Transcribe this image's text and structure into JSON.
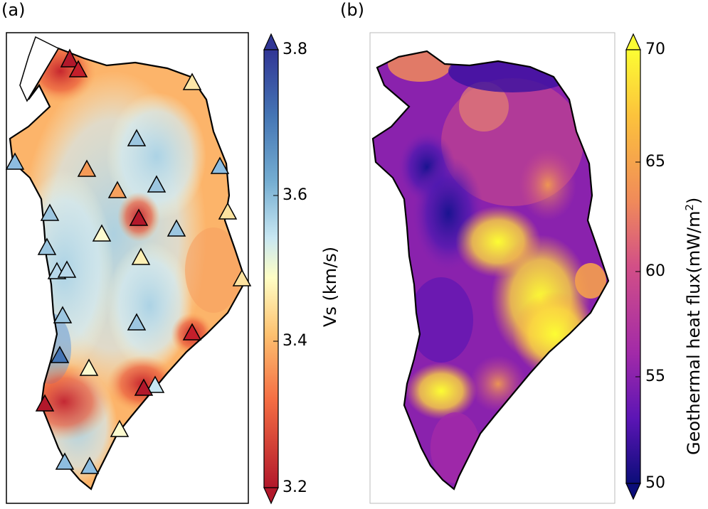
{
  "panels": [
    {
      "label": "(a)",
      "colorbar_title": "Vs (km/s)",
      "colorbar_ticks": [
        "3.8",
        "3.6",
        "3.4",
        "3.2"
      ]
    },
    {
      "label": "(b)",
      "colorbar_title_main": "Geothermal heat flux(mW/m",
      "colorbar_title_sup": "2",
      "colorbar_title_end": ")",
      "colorbar_ticks": [
        "70",
        "65",
        "60",
        "55",
        "50"
      ]
    }
  ],
  "colors": {
    "vs_high": "#3a53a4",
    "vs_mid": "#fffec5",
    "vs_low": "#c31f2b",
    "hf_high": "#fdfd2c",
    "hf_mid": "#d24f87",
    "hf_low": "#0b0d79"
  }
}
